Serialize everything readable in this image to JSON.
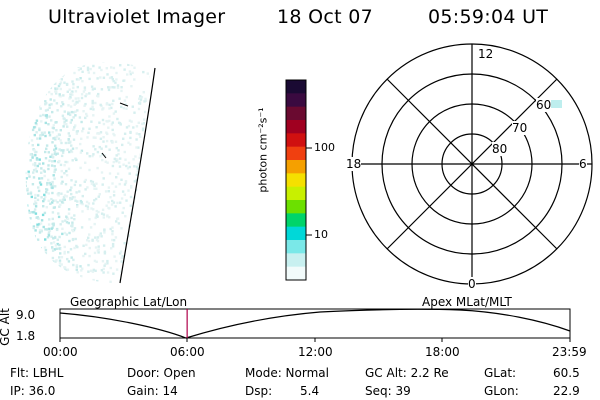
{
  "header": {
    "instrument": "Ultraviolet Imager",
    "date": "18 Oct 07",
    "time": "05:59:04 UT"
  },
  "colorbar": {
    "unit_label": "photon cm⁻²s⁻¹",
    "ticks": [
      "100",
      "10"
    ],
    "colors": [
      "#1a0a33",
      "#3a0a40",
      "#6a0a30",
      "#a00020",
      "#d01010",
      "#f04010",
      "#f5a000",
      "#f5e000",
      "#c8f000",
      "#6ce000",
      "#00d46a",
      "#00d8d8",
      "#7ae8e8",
      "#c8f0f0",
      "#f2fbfb"
    ]
  },
  "polar_plot": {
    "clock_labels": {
      "top": "12",
      "left": "18",
      "right": "6",
      "bottom": "0"
    },
    "lat_labels": [
      "60",
      "70",
      "80"
    ],
    "ring_color": "#000000"
  },
  "timeline": {
    "axis_label": "GC Alt",
    "y_ticks": [
      "9.0",
      "1.8"
    ],
    "left_label": "Geographic Lat/Lon",
    "right_label": "Apex MLat/MLT",
    "x_ticks": [
      "00:00",
      "06:00",
      "12:00",
      "18:00",
      "23:59"
    ],
    "cursor_time_fraction": 0.2493,
    "cursor_color": "#b0004a"
  },
  "status": {
    "flt": "Flt: LBHL",
    "door": "Door: Open",
    "mode": "Mode: Normal",
    "gc_alt": "GC Alt: 2.2 Re",
    "glat_label": "GLat:",
    "glat_value": "60.5",
    "ip": "IP: 36.0",
    "gain": "Gain: 14",
    "dsp_label": "Dsp:",
    "dsp_value": "5.4",
    "seq": "Seq: 39",
    "glon_label": "GLon:",
    "glon_value": "22.9"
  }
}
